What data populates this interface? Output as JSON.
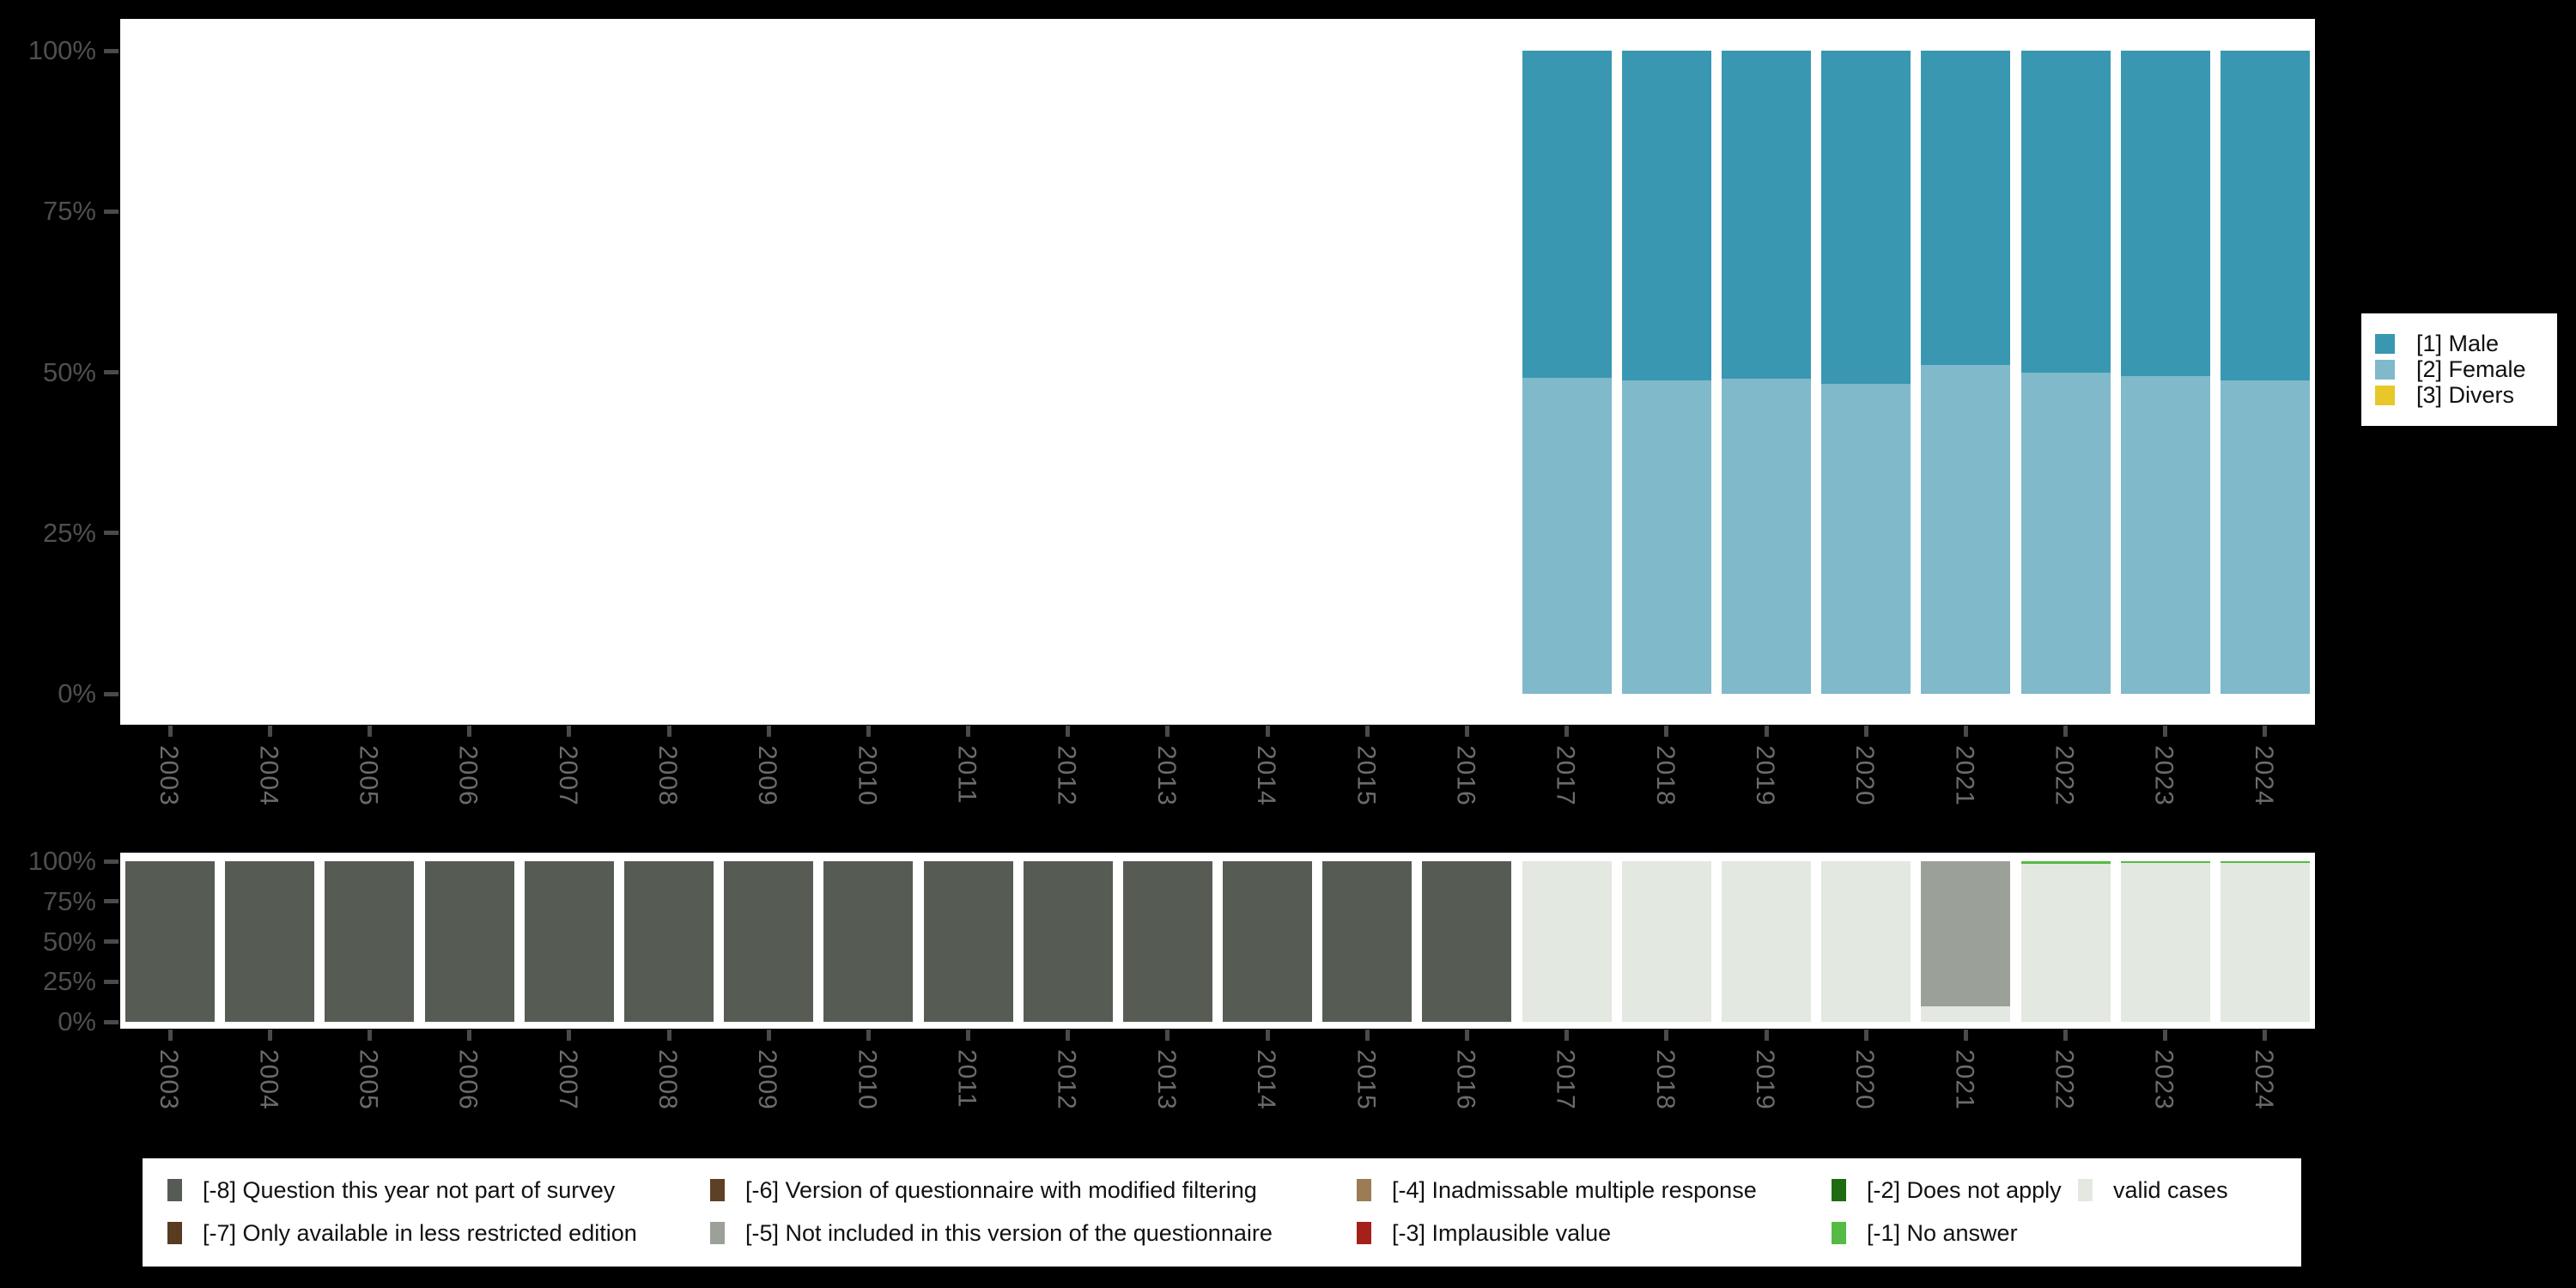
{
  "colors": {
    "background": "#000000",
    "panel": "#ffffff",
    "axis_text": "#4f4f4f",
    "year_text": "#6b6b6b",
    "tick": "#4a4a4a",
    "legend_text": "#111111",
    "male": "#3997B1",
    "female": "#7FB9CA",
    "divers": "#E8C72A",
    "m8": "#565C54",
    "m7": "#593B21",
    "m6": "#5E4027",
    "m5": "#9BA199",
    "m4": "#9C7C55",
    "m3": "#A52019",
    "m2": "#1E6B12",
    "m1": "#55BB45",
    "valid": "#E3E8E0"
  },
  "years": [
    "2003",
    "2004",
    "2005",
    "2006",
    "2007",
    "2008",
    "2009",
    "2010",
    "2011",
    "2012",
    "2013",
    "2014",
    "2015",
    "2016",
    "2017",
    "2018",
    "2019",
    "2020",
    "2021",
    "2022",
    "2023",
    "2024"
  ],
  "yticks": [
    "0%",
    "25%",
    "50%",
    "75%",
    "100%"
  ],
  "chart_data": [
    {
      "type": "bar",
      "stacked": true,
      "units": "percent",
      "title": "",
      "xlabel": "",
      "ylabel": "",
      "categories": [
        "2003",
        "2004",
        "2005",
        "2006",
        "2007",
        "2008",
        "2009",
        "2010",
        "2011",
        "2012",
        "2013",
        "2014",
        "2015",
        "2016",
        "2017",
        "2018",
        "2019",
        "2020",
        "2021",
        "2022",
        "2023",
        "2024"
      ],
      "ylim": [
        0,
        100
      ],
      "ytick_labels": [
        "0%",
        "25%",
        "50%",
        "75%",
        "100%"
      ],
      "xtick_label_rotation": 90,
      "grid": false,
      "legend_position": "right",
      "note": "no bars shown for 2003-2016",
      "series": [
        {
          "name": "[1] Male",
          "color_key": "male",
          "values_by_year": {
            "2017": 50.9,
            "2018": 51.3,
            "2019": 51.0,
            "2020": 51.8,
            "2021": 48.9,
            "2022": 50.1,
            "2023": 50.6,
            "2024": 51.3
          }
        },
        {
          "name": "[2] Female",
          "color_key": "female",
          "values_by_year": {
            "2017": 49.1,
            "2018": 48.7,
            "2019": 49.0,
            "2020": 48.2,
            "2021": 51.1,
            "2022": 49.9,
            "2023": 49.4,
            "2024": 48.7
          }
        },
        {
          "name": "[3] Divers",
          "color_key": "divers",
          "values_by_year": {}
        }
      ],
      "stack_bottom_to_top": [
        "[2] Female",
        "[1] Male",
        "[3] Divers"
      ]
    },
    {
      "type": "bar",
      "stacked": true,
      "units": "percent",
      "title": "",
      "xlabel": "",
      "ylabel": "",
      "categories": [
        "2003",
        "2004",
        "2005",
        "2006",
        "2007",
        "2008",
        "2009",
        "2010",
        "2011",
        "2012",
        "2013",
        "2014",
        "2015",
        "2016",
        "2017",
        "2018",
        "2019",
        "2020",
        "2021",
        "2022",
        "2023",
        "2024"
      ],
      "ylim": [
        0,
        100
      ],
      "ytick_labels": [
        "0%",
        "25%",
        "50%",
        "75%",
        "100%"
      ],
      "xtick_label_rotation": 90,
      "grid": false,
      "legend_position": "bottom",
      "series": [
        {
          "name": "[-8] Question this year not part of survey",
          "color_key": "m8",
          "values_by_year": {
            "2003": 100,
            "2004": 100,
            "2005": 100,
            "2006": 100,
            "2007": 100,
            "2008": 100,
            "2009": 100,
            "2010": 100,
            "2011": 100,
            "2012": 100,
            "2013": 100,
            "2014": 100,
            "2015": 100,
            "2016": 100
          }
        },
        {
          "name": "[-5] Not included in this version of the questionnaire",
          "color_key": "m5",
          "values_by_year": {
            "2021": 90.4
          }
        },
        {
          "name": "[-1] No answer",
          "color_key": "m1",
          "values_by_year": {
            "2022": 1.7,
            "2023": 1.2,
            "2024": 1.2
          }
        },
        {
          "name": "valid cases",
          "color_key": "valid",
          "values_by_year": {
            "2017": 100,
            "2018": 100,
            "2019": 100,
            "2020": 100,
            "2021": 9.6,
            "2022": 98.3,
            "2023": 98.8,
            "2024": 98.8
          }
        }
      ],
      "stack_bottom_to_top": [
        "valid cases",
        "[-8] Question this year not part of survey",
        "[-5] Not included in this version of the questionnaire",
        "[-1] No answer"
      ]
    }
  ],
  "legend_gender": {
    "items": [
      {
        "label": "[1] Male",
        "color_key": "male"
      },
      {
        "label": "[2] Female",
        "color_key": "female"
      },
      {
        "label": "[3] Divers",
        "color_key": "divers"
      }
    ]
  },
  "legend_missing": {
    "columns": [
      [
        {
          "label": "[-8] Question this year not part of survey",
          "color_key": "m8"
        },
        {
          "label": "[-7] Only available in less restricted edition",
          "color_key": "m7"
        }
      ],
      [
        {
          "label": "[-6] Version of questionnaire with modified filtering",
          "color_key": "m6"
        },
        {
          "label": "[-5] Not included in this version of the questionnaire",
          "color_key": "m5"
        }
      ],
      [
        {
          "label": "[-4] Inadmissable multiple response",
          "color_key": "m4"
        },
        {
          "label": "[-3] Implausible value",
          "color_key": "m3"
        }
      ],
      [
        {
          "label": "[-2] Does not apply",
          "color_key": "m2"
        },
        {
          "label": "[-1] No answer",
          "color_key": "m1"
        }
      ],
      [
        {
          "label": "valid cases",
          "color_key": "valid"
        }
      ]
    ]
  }
}
